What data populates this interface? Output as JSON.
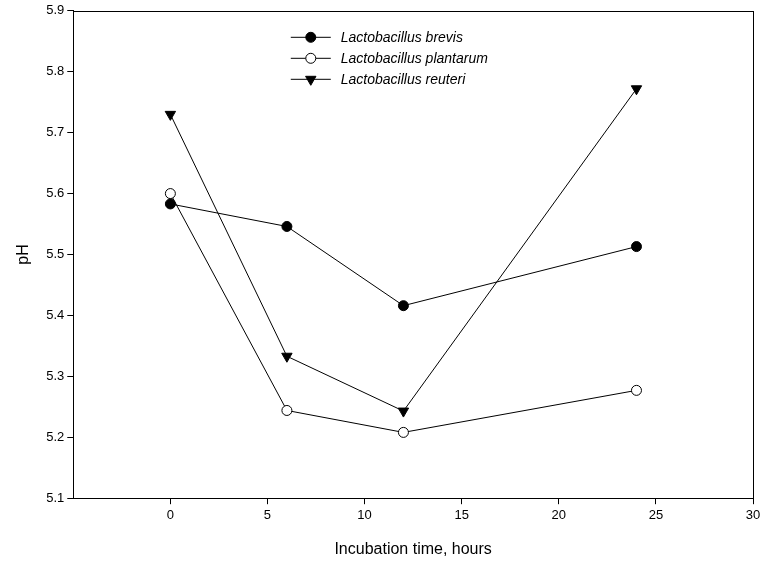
{
  "chart_data": {
    "type": "line",
    "x_label": "Incubation time, hours",
    "y_label": "pH",
    "x": [
      0,
      6,
      12,
      24
    ],
    "series": [
      {
        "name": "Lactobacillus brevis",
        "color": "#000000",
        "marker": "circle",
        "values": [
          5.583,
          5.546,
          5.416,
          5.513
        ]
      },
      {
        "name": "Lactobacillus plantarum",
        "color": "#000000",
        "marker": "open_circle",
        "values": [
          5.6,
          5.244,
          5.208,
          5.277
        ]
      },
      {
        "name": "Lactobacillus reuteri",
        "color": "#000000",
        "marker": "triangle_down",
        "values": [
          5.73,
          5.333,
          5.243,
          5.772
        ]
      }
    ],
    "xlim": [
      -5,
      30
    ],
    "xticks": [
      0,
      5,
      10,
      15,
      20,
      25,
      30
    ],
    "ylim": [
      5.1,
      5.9
    ],
    "yticks": [
      5.1,
      5.2,
      5.3,
      5.4,
      5.5,
      5.6,
      5.7,
      5.8,
      5.9
    ],
    "grid": false,
    "legend": "upper center"
  }
}
